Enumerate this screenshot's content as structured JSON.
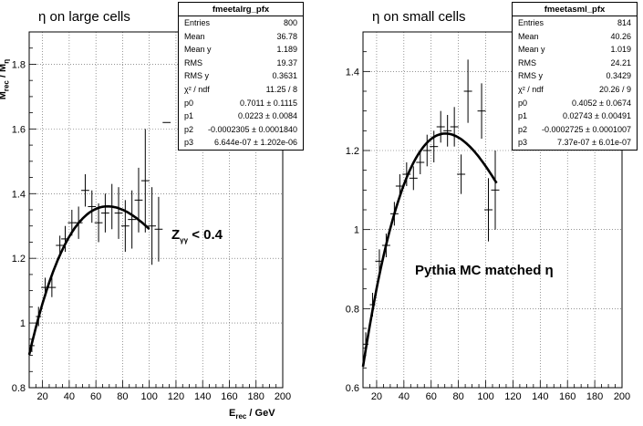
{
  "panels": [
    {
      "title_symbol": "η",
      "title_text": " on large cells",
      "note_main": "Z",
      "note_sub": "γγ",
      "note_tail": " < 0.4",
      "stats": {
        "name": "fmeetalrg_pfx",
        "rows": [
          {
            "k": "Entries",
            "v": "800"
          },
          {
            "k": "Mean",
            "v": "36.78"
          },
          {
            "k": "Mean y",
            "v": "1.189"
          },
          {
            "k": "RMS",
            "v": "19.37"
          },
          {
            "k": "RMS y",
            "v": "0.3631"
          },
          {
            "k": "χ² / ndf",
            "v": "11.25 / 8"
          },
          {
            "k": "p0",
            "v": "0.7011 ± 0.1115"
          },
          {
            "k": "p1",
            "v": "0.0223 ± 0.0084"
          },
          {
            "k": "p2",
            "v": "-0.0002305 ± 0.0001840"
          },
          {
            "k": "p3",
            "v": "6.644e-07 ± 1.202e-06"
          }
        ]
      }
    },
    {
      "title_symbol": "η",
      "title_text": " on small cells",
      "note_main": "Pythia MC matched ",
      "note_sym": "η",
      "stats": {
        "name": "fmeetasml_pfx",
        "rows": [
          {
            "k": "Entries",
            "v": "814"
          },
          {
            "k": "Mean",
            "v": "40.26"
          },
          {
            "k": "Mean y",
            "v": "1.019"
          },
          {
            "k": "RMS",
            "v": "24.21"
          },
          {
            "k": "RMS y",
            "v": "0.3429"
          },
          {
            "k": "χ² / ndf",
            "v": "20.26 / 9"
          },
          {
            "k": "p0",
            "v": "0.4052 ± 0.0674"
          },
          {
            "k": "p1",
            "v": "0.02743 ± 0.00491"
          },
          {
            "k": "p2",
            "v": "-0.0002725 ± 0.0001007"
          },
          {
            "k": "p3",
            "v": "7.37e-07 ± 6.01e-07"
          }
        ]
      }
    }
  ],
  "xlabel_main": "E",
  "xlabel_sub": "rec",
  "xlabel_tail": " / GeV",
  "ylabel_main": "M",
  "ylabel_sub1": "rec",
  "ylabel_mid": " / M",
  "ylabel_sub2": "η",
  "chart_data": [
    {
      "type": "scatter",
      "title": "η on large cells",
      "xlim": [
        10,
        200
      ],
      "ylim": [
        0.8,
        1.9
      ],
      "xticks": [
        20,
        40,
        60,
        80,
        100,
        120,
        140,
        160,
        180,
        200
      ],
      "yticks": [
        0.8,
        1.0,
        1.2,
        1.4,
        1.6,
        1.8
      ],
      "grid": true,
      "series": [
        {
          "points": [
            {
              "x": 12,
              "y": 0.93,
              "ey": 0.02,
              "ex": 2
            },
            {
              "x": 17,
              "y": 1.02,
              "ey": 0.03,
              "ex": 2
            },
            {
              "x": 22,
              "y": 1.11,
              "ey": 0.03,
              "ex": 3
            },
            {
              "x": 27,
              "y": 1.11,
              "ey": 0.03,
              "ex": 3
            },
            {
              "x": 33,
              "y": 1.24,
              "ey": 0.03,
              "ex": 3
            },
            {
              "x": 37,
              "y": 1.26,
              "ey": 0.04,
              "ex": 3
            },
            {
              "x": 42,
              "y": 1.31,
              "ey": 0.04,
              "ex": 3
            },
            {
              "x": 47,
              "y": 1.31,
              "ey": 0.05,
              "ex": 3
            },
            {
              "x": 52,
              "y": 1.41,
              "ey": 0.05,
              "ex": 3
            },
            {
              "x": 57,
              "y": 1.36,
              "ey": 0.05,
              "ex": 3
            },
            {
              "x": 62,
              "y": 1.31,
              "ey": 0.06,
              "ex": 3
            },
            {
              "x": 67,
              "y": 1.34,
              "ey": 0.06,
              "ex": 3
            },
            {
              "x": 72,
              "y": 1.36,
              "ey": 0.07,
              "ex": 3
            },
            {
              "x": 77,
              "y": 1.34,
              "ey": 0.08,
              "ex": 3
            },
            {
              "x": 82,
              "y": 1.3,
              "ey": 0.08,
              "ex": 3
            },
            {
              "x": 87,
              "y": 1.32,
              "ey": 0.09,
              "ex": 3
            },
            {
              "x": 92,
              "y": 1.38,
              "ey": 0.1,
              "ex": 3
            },
            {
              "x": 97,
              "y": 1.44,
              "ey": 0.16,
              "ex": 3
            },
            {
              "x": 102,
              "y": 1.3,
              "ey": 0.12,
              "ex": 3
            },
            {
              "x": 107,
              "y": 1.29,
              "ey": 0.1,
              "ex": 3
            },
            {
              "x": 113,
              "y": 1.62,
              "ey": 0.0,
              "ex": 3
            }
          ]
        }
      ],
      "fit": {
        "p0": 0.7011,
        "p1": 0.0223,
        "p2": -0.0002305,
        "p3": 6.644e-07,
        "xrange": [
          10,
          100
        ]
      }
    },
    {
      "type": "scatter",
      "title": "η on small cells",
      "xlim": [
        10,
        200
      ],
      "ylim": [
        0.6,
        1.5
      ],
      "xticks": [
        20,
        40,
        60,
        80,
        100,
        120,
        140,
        160,
        180,
        200
      ],
      "yticks": [
        0.6,
        0.8,
        1.0,
        1.2,
        1.4
      ],
      "grid": true,
      "series": [
        {
          "points": [
            {
              "x": 12,
              "y": 0.71,
              "ey": 0.03,
              "ex": 2
            },
            {
              "x": 17,
              "y": 0.81,
              "ey": 0.03,
              "ex": 2
            },
            {
              "x": 22,
              "y": 0.92,
              "ey": 0.03,
              "ex": 3
            },
            {
              "x": 27,
              "y": 0.96,
              "ey": 0.03,
              "ex": 3
            },
            {
              "x": 33,
              "y": 1.04,
              "ey": 0.03,
              "ex": 3
            },
            {
              "x": 37,
              "y": 1.11,
              "ey": 0.03,
              "ex": 3
            },
            {
              "x": 42,
              "y": 1.14,
              "ey": 0.03,
              "ex": 3
            },
            {
              "x": 47,
              "y": 1.13,
              "ey": 0.03,
              "ex": 3
            },
            {
              "x": 52,
              "y": 1.17,
              "ey": 0.03,
              "ex": 3
            },
            {
              "x": 57,
              "y": 1.2,
              "ey": 0.04,
              "ex": 3
            },
            {
              "x": 62,
              "y": 1.21,
              "ey": 0.04,
              "ex": 3
            },
            {
              "x": 67,
              "y": 1.26,
              "ey": 0.04,
              "ex": 3
            },
            {
              "x": 72,
              "y": 1.25,
              "ey": 0.04,
              "ex": 3
            },
            {
              "x": 77,
              "y": 1.26,
              "ey": 0.05,
              "ex": 3
            },
            {
              "x": 82,
              "y": 1.14,
              "ey": 0.05,
              "ex": 3
            },
            {
              "x": 87,
              "y": 1.35,
              "ey": 0.08,
              "ex": 3
            },
            {
              "x": 97,
              "y": 1.3,
              "ey": 0.07,
              "ex": 3
            },
            {
              "x": 102,
              "y": 1.05,
              "ey": 0.08,
              "ex": 3
            },
            {
              "x": 107,
              "y": 1.1,
              "ey": 0.1,
              "ex": 3
            }
          ]
        }
      ],
      "fit": {
        "p0": 0.4052,
        "p1": 0.02743,
        "p2": -0.0002725,
        "p3": 7.37e-07,
        "xrange": [
          10,
          108
        ]
      }
    }
  ]
}
